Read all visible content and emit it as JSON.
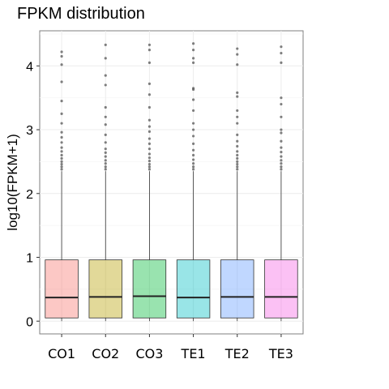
{
  "chart_data": {
    "type": "box",
    "title": "FPKM distribution",
    "xlabel": "",
    "ylabel": "log10(FPKM+1)",
    "ylim": [
      -0.2,
      4.55
    ],
    "yticks": [
      0,
      1,
      2,
      3,
      4
    ],
    "grid": true,
    "legend": "none",
    "categories": [
      "CO1",
      "CO2",
      "CO3",
      "TE1",
      "TE2",
      "TE3"
    ],
    "series": [
      {
        "category": "CO1",
        "color": "#F8766D",
        "min": 0.0,
        "q1": 0.05,
        "median": 0.37,
        "q3": 0.96,
        "whisker_high": 2.35,
        "outliers": [
          2.38,
          2.42,
          2.46,
          2.5,
          2.55,
          2.6,
          2.66,
          2.72,
          2.8,
          2.88,
          2.96,
          3.1,
          3.25,
          3.45,
          3.75,
          4.02,
          4.15,
          4.22
        ]
      },
      {
        "category": "CO2",
        "color": "#B79F00",
        "min": 0.0,
        "q1": 0.05,
        "median": 0.38,
        "q3": 0.96,
        "whisker_high": 2.35,
        "outliers": [
          2.38,
          2.42,
          2.47,
          2.52,
          2.58,
          2.64,
          2.7,
          2.8,
          2.92,
          3.08,
          3.2,
          3.35,
          3.7,
          3.85,
          4.12,
          4.33
        ]
      },
      {
        "category": "CO3",
        "color": "#00BA38",
        "min": 0.0,
        "q1": 0.05,
        "median": 0.39,
        "q3": 0.96,
        "whisker_high": 2.35,
        "outliers": [
          2.38,
          2.42,
          2.46,
          2.51,
          2.56,
          2.62,
          2.7,
          2.78,
          2.86,
          2.97,
          3.05,
          3.15,
          3.35,
          3.55,
          3.72,
          4.05,
          4.25,
          4.33
        ]
      },
      {
        "category": "TE1",
        "color": "#00BFC4",
        "min": 0.0,
        "q1": 0.05,
        "median": 0.37,
        "q3": 0.96,
        "whisker_high": 2.35,
        "outliers": [
          2.38,
          2.42,
          2.47,
          2.53,
          2.6,
          2.68,
          2.78,
          2.9,
          3.0,
          3.1,
          3.3,
          3.47,
          3.63,
          3.65,
          4.05,
          4.12,
          4.25,
          4.35
        ]
      },
      {
        "category": "TE2",
        "color": "#619CFF",
        "min": 0.0,
        "q1": 0.05,
        "median": 0.38,
        "q3": 0.96,
        "whisker_high": 2.35,
        "outliers": [
          2.38,
          2.42,
          2.46,
          2.5,
          2.55,
          2.6,
          2.66,
          2.74,
          2.82,
          2.92,
          3.1,
          3.2,
          3.3,
          3.52,
          3.58,
          4.02,
          4.18,
          4.27
        ]
      },
      {
        "category": "TE3",
        "color": "#F564E3",
        "min": 0.0,
        "q1": 0.05,
        "median": 0.38,
        "q3": 0.96,
        "whisker_high": 2.35,
        "outliers": [
          2.38,
          2.42,
          2.47,
          2.52,
          2.58,
          2.65,
          2.72,
          2.82,
          2.95,
          3.0,
          3.2,
          3.4,
          3.5,
          4.05,
          4.2,
          4.3
        ]
      }
    ]
  }
}
